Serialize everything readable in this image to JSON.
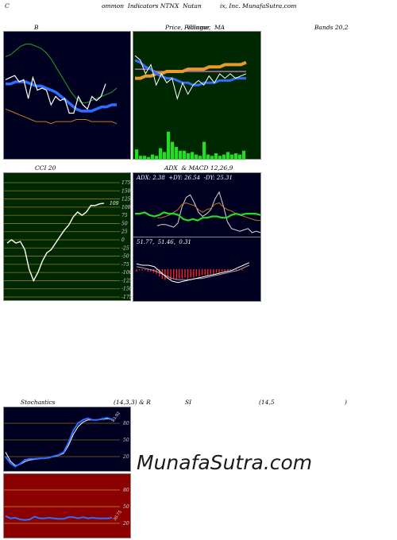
{
  "header": {
    "left": "C",
    "mid": "ommon  Indicators NTNX  Nutan",
    "right": "ix, Inc. MunafaSutra.com"
  },
  "titles": {
    "b": "B",
    "price": "Price,  Volume,  MA",
    "price_overlay": "Fillinger",
    "bands": "Bands 20,2",
    "cci": "CCI 20",
    "adx": "ADX  & MACD 12,26,9",
    "stoch_left": "Stochastics",
    "stoch_params": "(14,3,3) & R",
    "rsi_si": "SI",
    "rsi_params": "(14,5",
    "rsi_close": ")"
  },
  "watermark": "MunafaSutra.com",
  "colors": {
    "navy": "#000020",
    "dark_green": "#002800",
    "maroon": "#8b0000",
    "blue": "#2f6fff",
    "orange": "#e89a2a",
    "green": "#22dd22",
    "red": "#ff2020"
  },
  "chart_data": [
    {
      "type": "line",
      "name": "bollinger",
      "series": [
        {
          "values": [
            74,
            75,
            76,
            73,
            74,
            65,
            75,
            69,
            70,
            69,
            62,
            66,
            64,
            65,
            58,
            58,
            66,
            62,
            60,
            66,
            64,
            66,
            72
          ]
        },
        {
          "values": [
            85,
            86,
            88,
            90,
            91,
            91,
            90,
            89,
            87,
            84,
            80,
            76,
            72,
            68,
            65,
            63,
            63,
            64,
            65,
            66,
            67,
            68,
            70
          ]
        },
        {
          "values": [
            72,
            72,
            73,
            73,
            73,
            72,
            71,
            71,
            70,
            69,
            68,
            66,
            64,
            62,
            60,
            59,
            59,
            59,
            60,
            61,
            61,
            62,
            62
          ]
        },
        {
          "values": [
            60,
            59,
            58,
            57,
            56,
            55,
            54,
            54,
            54,
            53,
            54,
            54,
            54,
            54,
            55,
            55,
            55,
            54,
            54,
            54,
            54,
            54,
            53
          ]
        }
      ]
    },
    {
      "type": "line",
      "name": "price-volume-ma",
      "series": [
        {
          "values": [
            68,
            66,
            60,
            64,
            55,
            60,
            56,
            58,
            49,
            56,
            51,
            55,
            57,
            55,
            59,
            56,
            60,
            58,
            60,
            58,
            59,
            60
          ]
        },
        {
          "values": [
            66,
            65,
            63,
            62,
            60,
            59,
            58,
            58,
            57,
            56,
            56,
            55,
            55,
            56,
            56,
            56,
            57,
            57,
            57,
            58,
            58,
            58
          ]
        },
        {
          "values": [
            58,
            58,
            59,
            59,
            60,
            60,
            61,
            61,
            61,
            61,
            62,
            62,
            62,
            62,
            63,
            63,
            63,
            64,
            64,
            64,
            64,
            65
          ]
        },
        {
          "values": [
            62,
            62,
            62,
            62,
            61,
            61,
            61,
            61,
            61,
            61,
            61,
            61,
            61,
            61,
            61,
            61,
            61,
            61,
            61,
            61,
            61,
            61
          ]
        }
      ],
      "volume": [
        8,
        3,
        3,
        2,
        4,
        3,
        9,
        6,
        22,
        14,
        10,
        7,
        7,
        5,
        6,
        4,
        3,
        14,
        4,
        3,
        5,
        3,
        4,
        6,
        4,
        5,
        4,
        7
      ]
    },
    {
      "type": "line",
      "name": "cci",
      "ticks": [
        175,
        150,
        125,
        100,
        75,
        50,
        25,
        0,
        -25,
        -50,
        -75,
        -100,
        -125,
        -150,
        -175
      ],
      "last_label": "109",
      "values": [
        -10,
        0,
        -10,
        -5,
        -30,
        -90,
        -125,
        -100,
        -65,
        -40,
        -30,
        -10,
        10,
        30,
        45,
        70,
        85,
        75,
        85,
        105,
        105,
        110,
        112
      ]
    },
    {
      "type": "line",
      "name": "adx",
      "label": "ADX: 2.38  +DY: 26.54  -DY: 25.31",
      "series": [
        {
          "values": [
            17,
            17,
            18,
            16,
            15,
            16,
            18,
            17,
            17,
            16,
            13,
            12,
            13,
            12,
            14,
            14,
            15,
            15,
            14,
            14,
            16,
            17,
            16,
            17,
            17,
            17,
            16
          ]
        },
        {
          "values": [
            8,
            9,
            9,
            8,
            7,
            10,
            22,
            29,
            31,
            25,
            18,
            15,
            17,
            20,
            28,
            33,
            23,
            11,
            6,
            5,
            4,
            5,
            6,
            3,
            4,
            3
          ]
        },
        {
          "values": [
            14,
            14,
            15,
            16,
            18,
            20,
            24,
            25,
            24,
            23,
            20,
            18,
            20,
            21,
            24,
            25,
            22,
            20,
            19,
            17,
            16,
            15,
            14,
            13,
            12,
            12
          ]
        }
      ]
    },
    {
      "type": "bar",
      "name": "macd",
      "label": "51.77,  51.46,  0.31",
      "hist": [
        -2,
        -1,
        -1,
        -1,
        -2,
        -2,
        -3,
        -4,
        -6,
        -8,
        -9,
        -8,
        -9,
        -8,
        -9,
        -8,
        -8,
        -7,
        -8,
        -7,
        -7,
        -6,
        -6,
        -5,
        -5,
        -5,
        -4,
        -4,
        -3,
        -3,
        -2,
        -2,
        -2,
        -1,
        -1,
        -1,
        -1,
        -1,
        0
      ],
      "series": [
        {
          "values": [
            4,
            3,
            3,
            2,
            -2,
            -6,
            -9,
            -10,
            -9,
            -8,
            -7,
            -6,
            -5,
            -4,
            -3,
            -2,
            -1,
            1,
            3,
            5
          ]
        },
        {
          "values": [
            2,
            1,
            0,
            -1,
            -3,
            -5,
            -7,
            -8,
            -8,
            -8,
            -7,
            -7,
            -6,
            -5,
            -4,
            -3,
            -2,
            -1,
            1,
            3
          ]
        }
      ]
    },
    {
      "type": "line",
      "name": "stochastics",
      "ticks": [
        80,
        50,
        20
      ],
      "last_label": "83.92",
      "series": [
        {
          "values": [
            20,
            8,
            2,
            7,
            14,
            16,
            16,
            17,
            17,
            18,
            21,
            23,
            28,
            45,
            67,
            80,
            86,
            89,
            86,
            86,
            88,
            90,
            87
          ]
        },
        {
          "values": [
            28,
            12,
            4,
            6,
            11,
            14,
            15,
            16,
            17,
            18,
            20,
            22,
            26,
            40,
            60,
            74,
            82,
            86,
            86,
            86,
            87,
            88,
            87
          ]
        }
      ]
    },
    {
      "type": "line",
      "name": "rsi",
      "ticks": [
        80,
        50,
        20
      ],
      "last_label": "30.75",
      "values": [
        33,
        29,
        30,
        27,
        26,
        27,
        32,
        29,
        29,
        30,
        29,
        28,
        28,
        31,
        31,
        29,
        31,
        29,
        30,
        29,
        29,
        29,
        30
      ]
    }
  ]
}
